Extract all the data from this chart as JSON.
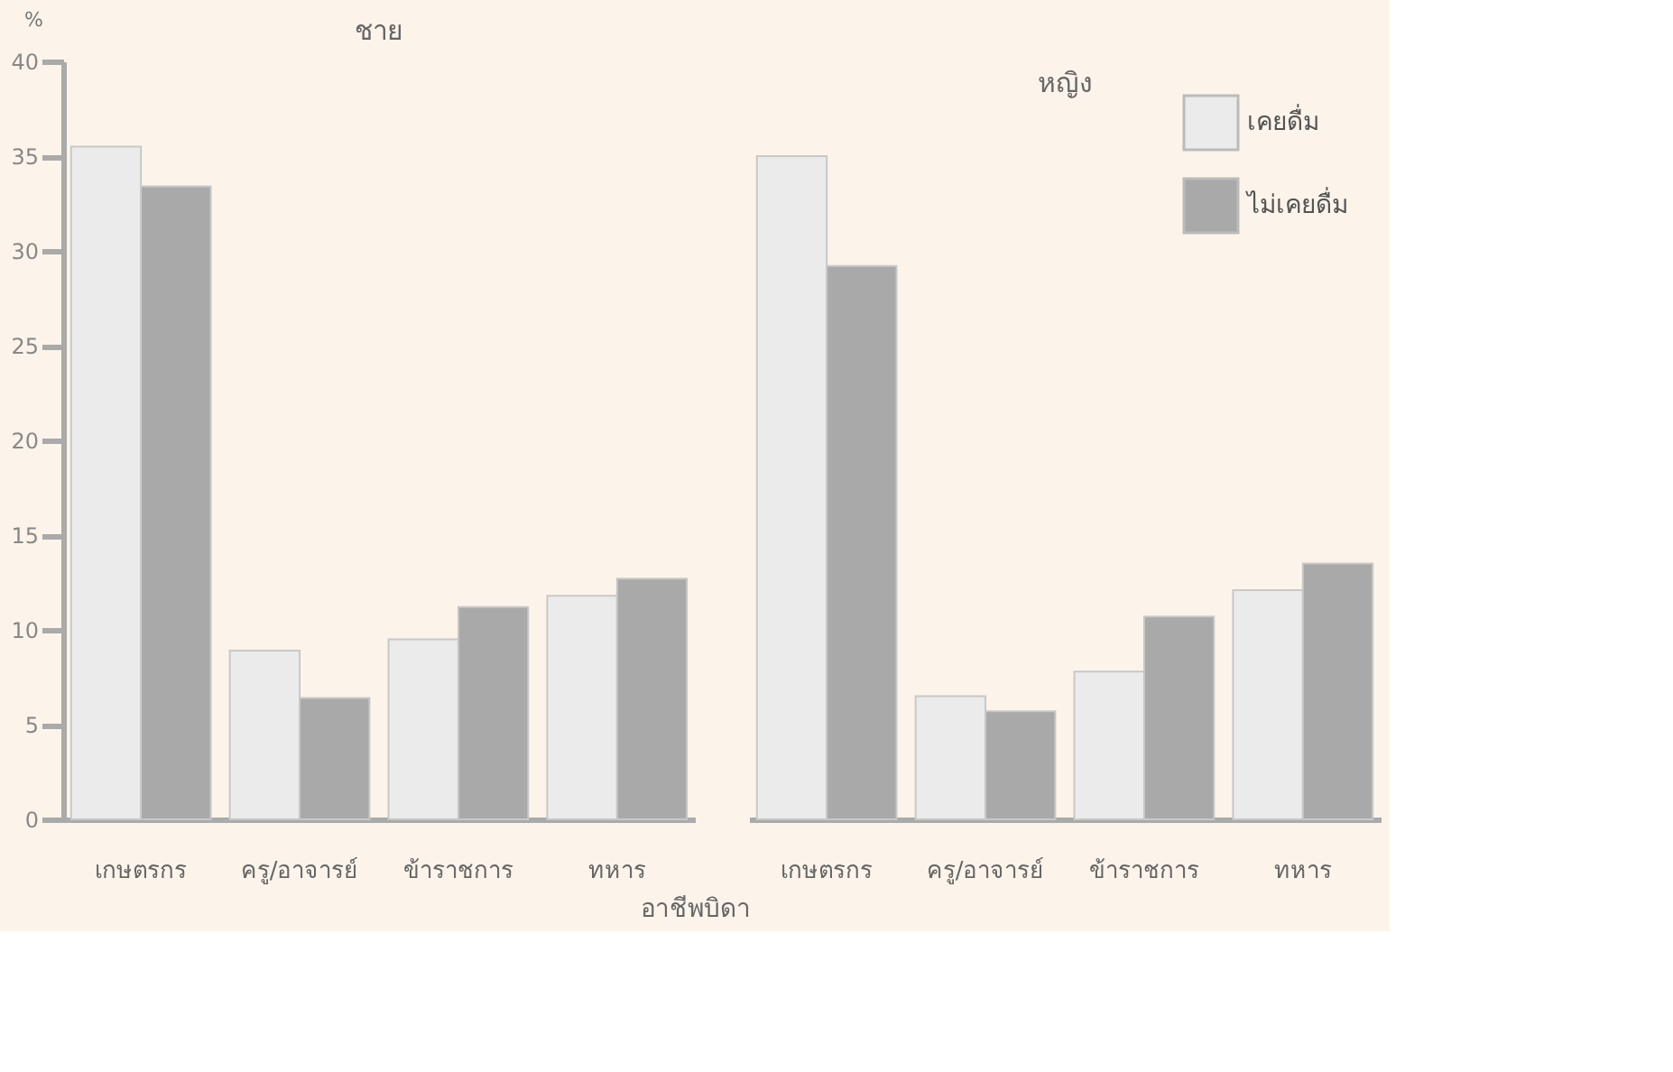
{
  "chart_data": [
    {
      "type": "bar",
      "title": "ชาย",
      "ylabel": "%",
      "xlabel": "อาชีพบิดา",
      "categories": [
        "เกษตรกร",
        "ครู/อาจารย์",
        "ข้าราชการ",
        "ทหาร"
      ],
      "series": [
        {
          "color": "#ebebeb",
          "values": [
            35.5,
            8.9,
            9.5,
            11.8
          ]
        },
        {
          "color": "#a9a9a9",
          "values": [
            33.4,
            6.4,
            11.2,
            12.7
          ]
        }
      ],
      "ylim": [
        0,
        40
      ],
      "yticks": [
        0,
        5,
        10,
        15,
        20,
        25,
        30,
        35,
        40
      ],
      "grid": false,
      "legend": false
    },
    {
      "type": "bar",
      "title": "หญิง",
      "categories": [
        "เกษตรกร",
        "ครู/อาจารย์",
        "ข้าราชการ",
        "ทหาร"
      ],
      "series": [
        {
          "name": "เคยดื่ม",
          "color": "#ebebeb",
          "values": [
            35.0,
            6.5,
            7.8,
            12.1
          ]
        },
        {
          "name": "ไม่เคยดื่ม",
          "color": "#a9a9a9",
          "values": [
            29.2,
            5.7,
            10.7,
            13.5
          ]
        }
      ],
      "ylim": [
        0,
        40
      ],
      "yticks": [
        0,
        5,
        10,
        15,
        20,
        25,
        30,
        35,
        40
      ],
      "grid": false,
      "legend": "top right",
      "tick_labels": "x"
    }
  ]
}
